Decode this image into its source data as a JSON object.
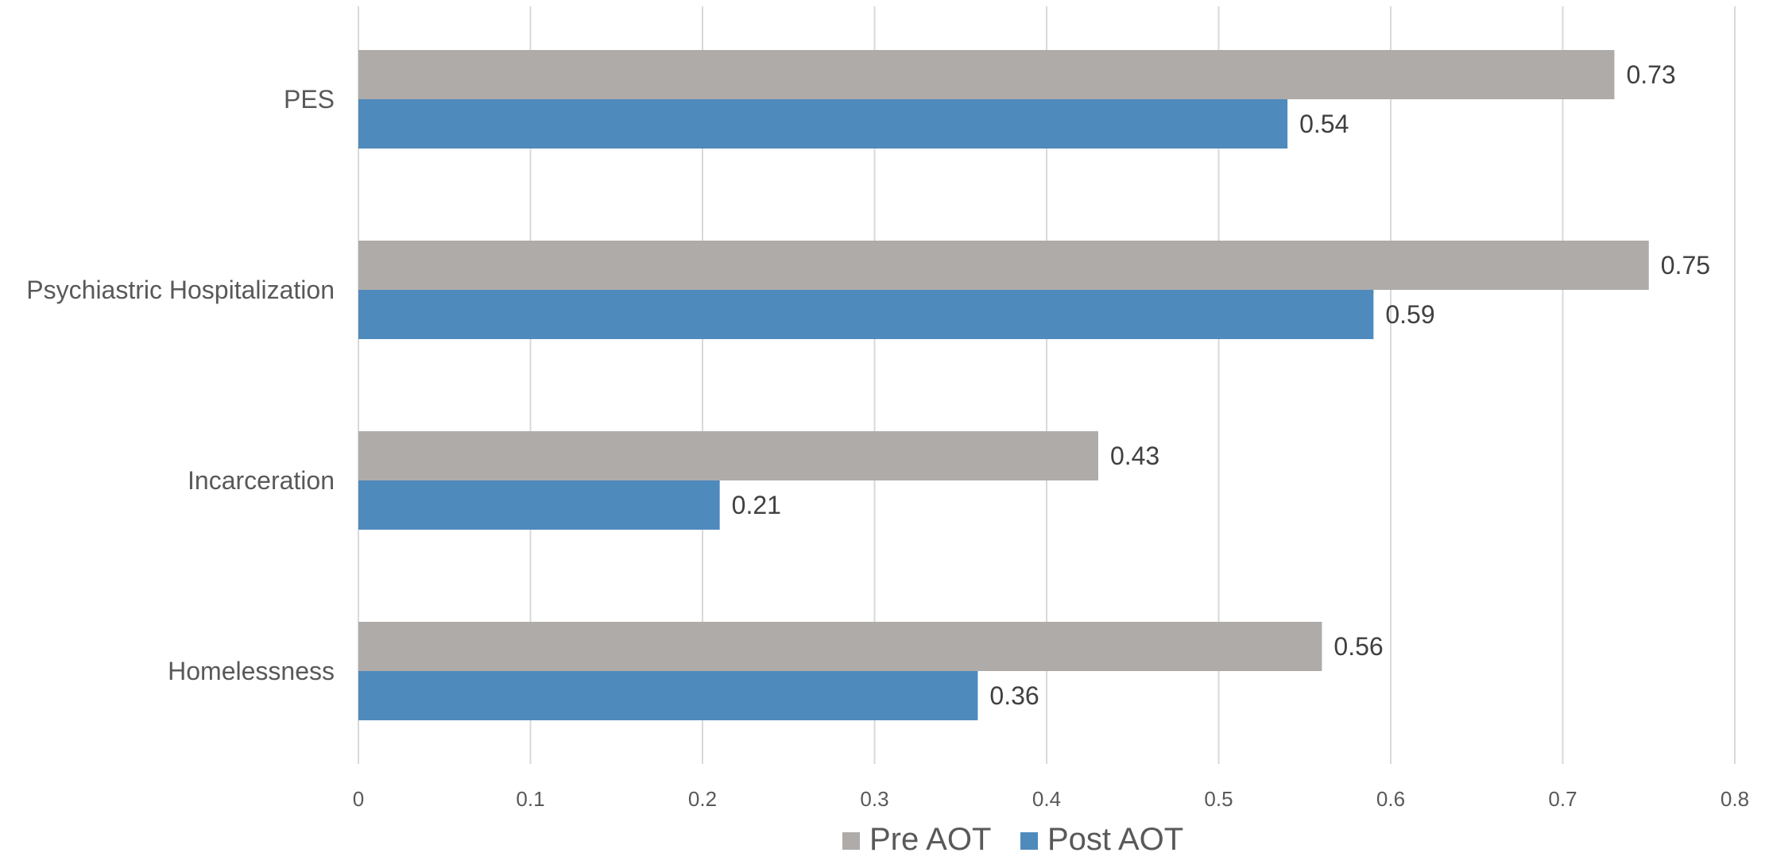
{
  "chart_data": {
    "type": "bar",
    "orientation": "horizontal",
    "categories": [
      "PES",
      "Psychiastric Hospitalization",
      "Incarceration",
      "Homelessness"
    ],
    "series": [
      {
        "name": "Pre AOT",
        "color": "#aeaba9",
        "values": [
          0.73,
          0.75,
          0.43,
          0.56
        ]
      },
      {
        "name": "Post AOT",
        "color": "#4f8abd",
        "values": [
          0.54,
          0.59,
          0.21,
          0.36
        ]
      }
    ],
    "xlim": [
      0,
      0.8
    ],
    "xticks": [
      "0",
      "0.1",
      "0.2",
      "0.3",
      "0.4",
      "0.5",
      "0.6",
      "0.7",
      "0.8"
    ],
    "grid": true,
    "legend": "bottom",
    "data_labels": true
  }
}
